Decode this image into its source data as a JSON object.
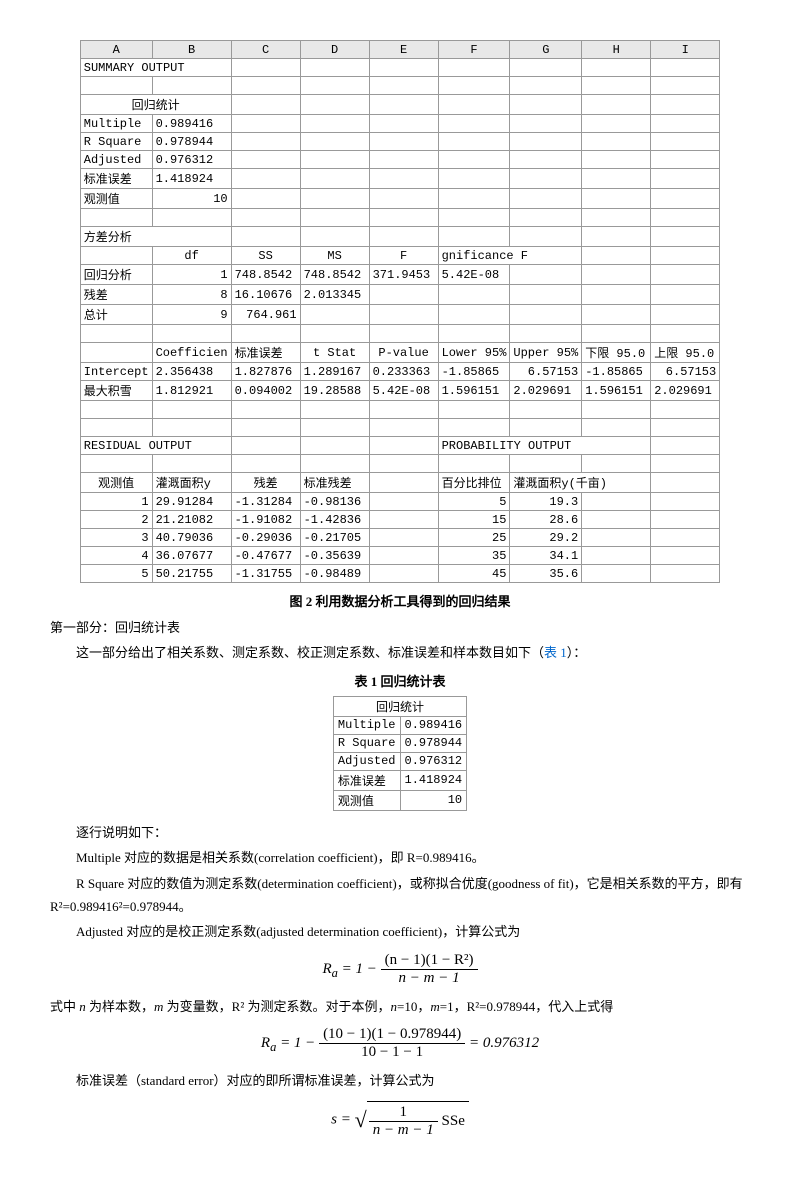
{
  "figure2": {
    "caption": "图 2  利用数据分析工具得到的回归结果",
    "cols": [
      "A",
      "B",
      "C",
      "D",
      "E",
      "F",
      "G",
      "H",
      "I"
    ],
    "summary_output": "SUMMARY OUTPUT",
    "regstat_header": "回归统计",
    "regstat_rows": [
      [
        "Multiple",
        "0.989416"
      ],
      [
        "R Square",
        "0.978944"
      ],
      [
        "Adjusted",
        "0.976312"
      ],
      [
        "标准误差",
        "1.418924"
      ],
      [
        "观测值",
        "10"
      ]
    ],
    "anova_header": "方差分析",
    "anova_cols": [
      "",
      "df",
      "SS",
      "MS",
      "F",
      "gnificance F"
    ],
    "anova_rows": [
      [
        "回归分析",
        "1",
        "748.8542",
        "748.8542",
        "371.9453",
        "5.42E-08"
      ],
      [
        "残差",
        "8",
        "16.10676",
        "2.013345",
        "",
        ""
      ],
      [
        "总计",
        "9",
        "764.961",
        "",
        "",
        ""
      ]
    ],
    "coef_cols": [
      "",
      "Coefficien",
      "标准误差",
      "t Stat",
      "P-value",
      "Lower 95%",
      "Upper 95%",
      "下限 95.0",
      "上限 95.0"
    ],
    "coef_rows": [
      [
        "Intercept",
        "2.356438",
        "1.827876",
        "1.289167",
        "0.233363",
        "-1.85865",
        "6.57153",
        "-1.85865",
        "6.57153"
      ],
      [
        "最大积雪",
        "1.812921",
        "0.094002",
        "19.28588",
        "5.42E-08",
        "1.596151",
        "2.029691",
        "1.596151",
        "2.029691"
      ]
    ],
    "residual_output": "RESIDUAL OUTPUT",
    "probability_output": "PROBABILITY OUTPUT",
    "resid_cols": [
      "观测值",
      "灌溉面积y",
      "残差",
      "标准残差"
    ],
    "prob_cols": [
      "百分比排位",
      "灌溉面积y(千亩)"
    ],
    "resid_rows": [
      [
        "1",
        "29.91284",
        "-1.31284",
        "-0.98136",
        "",
        "5",
        "19.3"
      ],
      [
        "2",
        "21.21082",
        "-1.91082",
        "-1.42836",
        "",
        "15",
        "28.6"
      ],
      [
        "3",
        "40.79036",
        "-0.29036",
        "-0.21705",
        "",
        "25",
        "29.2"
      ],
      [
        "4",
        "36.07677",
        "-0.47677",
        "-0.35639",
        "",
        "35",
        "34.1"
      ],
      [
        "5",
        "50.21755",
        "-1.31755",
        "-0.98489",
        "",
        "45",
        "35.6"
      ]
    ]
  },
  "part1_title": "第一部分：回归统计表",
  "part1_intro": "这一部分给出了相关系数、测定系数、校正测定系数、标准误差和样本数目如下（",
  "part1_link": "表 1",
  "part1_intro_end": "）：",
  "table1": {
    "caption": "表 1  回归统计表",
    "header": "回归统计",
    "rows": [
      [
        "Multiple",
        "0.989416"
      ],
      [
        "R Square",
        "0.978944"
      ],
      [
        "Adjusted",
        "0.976312"
      ],
      [
        "标准误差",
        "1.418924"
      ],
      [
        "观测值",
        "10"
      ]
    ]
  },
  "notes": {
    "line1": "逐行说明如下：",
    "line2": "Multiple 对应的数据是相关系数(correlation coefficient)，即 R=0.989416。",
    "line3": "R Square 对应的数值为测定系数(determination coefficient)，或称拟合优度(goodness of fit)，它是相关系数的平方，即有 R²=0.989416²=0.978944。",
    "line4": "Adjusted 对应的是校正测定系数(adjusted determination coefficient)，计算公式为",
    "line5_pre": "式中 ",
    "line5_mid": " 为样本数，",
    "line5_mid2": " 为变量数，R² 为测定系数。对于本例，",
    "line5_vals": "=10，",
    "line5_vals2": "=1，R²=0.978944，代入上式得",
    "line6": "标准误差（standard error）对应的即所谓标准误差，计算公式为"
  },
  "formula1": {
    "lhs": "R",
    "sub": "a",
    "eq": " = 1 − ",
    "num": "(n − 1)(1 − R²)",
    "den": "n − m − 1"
  },
  "formula2": {
    "lhs": "R",
    "sub": "a",
    "eq": " = 1 − ",
    "num": "(10 − 1)(1 − 0.978944)",
    "den": "10 − 1 − 1",
    "result": " = 0.976312"
  },
  "formula3": {
    "lhs": "s = ",
    "num": "1",
    "den": "n − m − 1",
    "suffix": " SSe"
  }
}
